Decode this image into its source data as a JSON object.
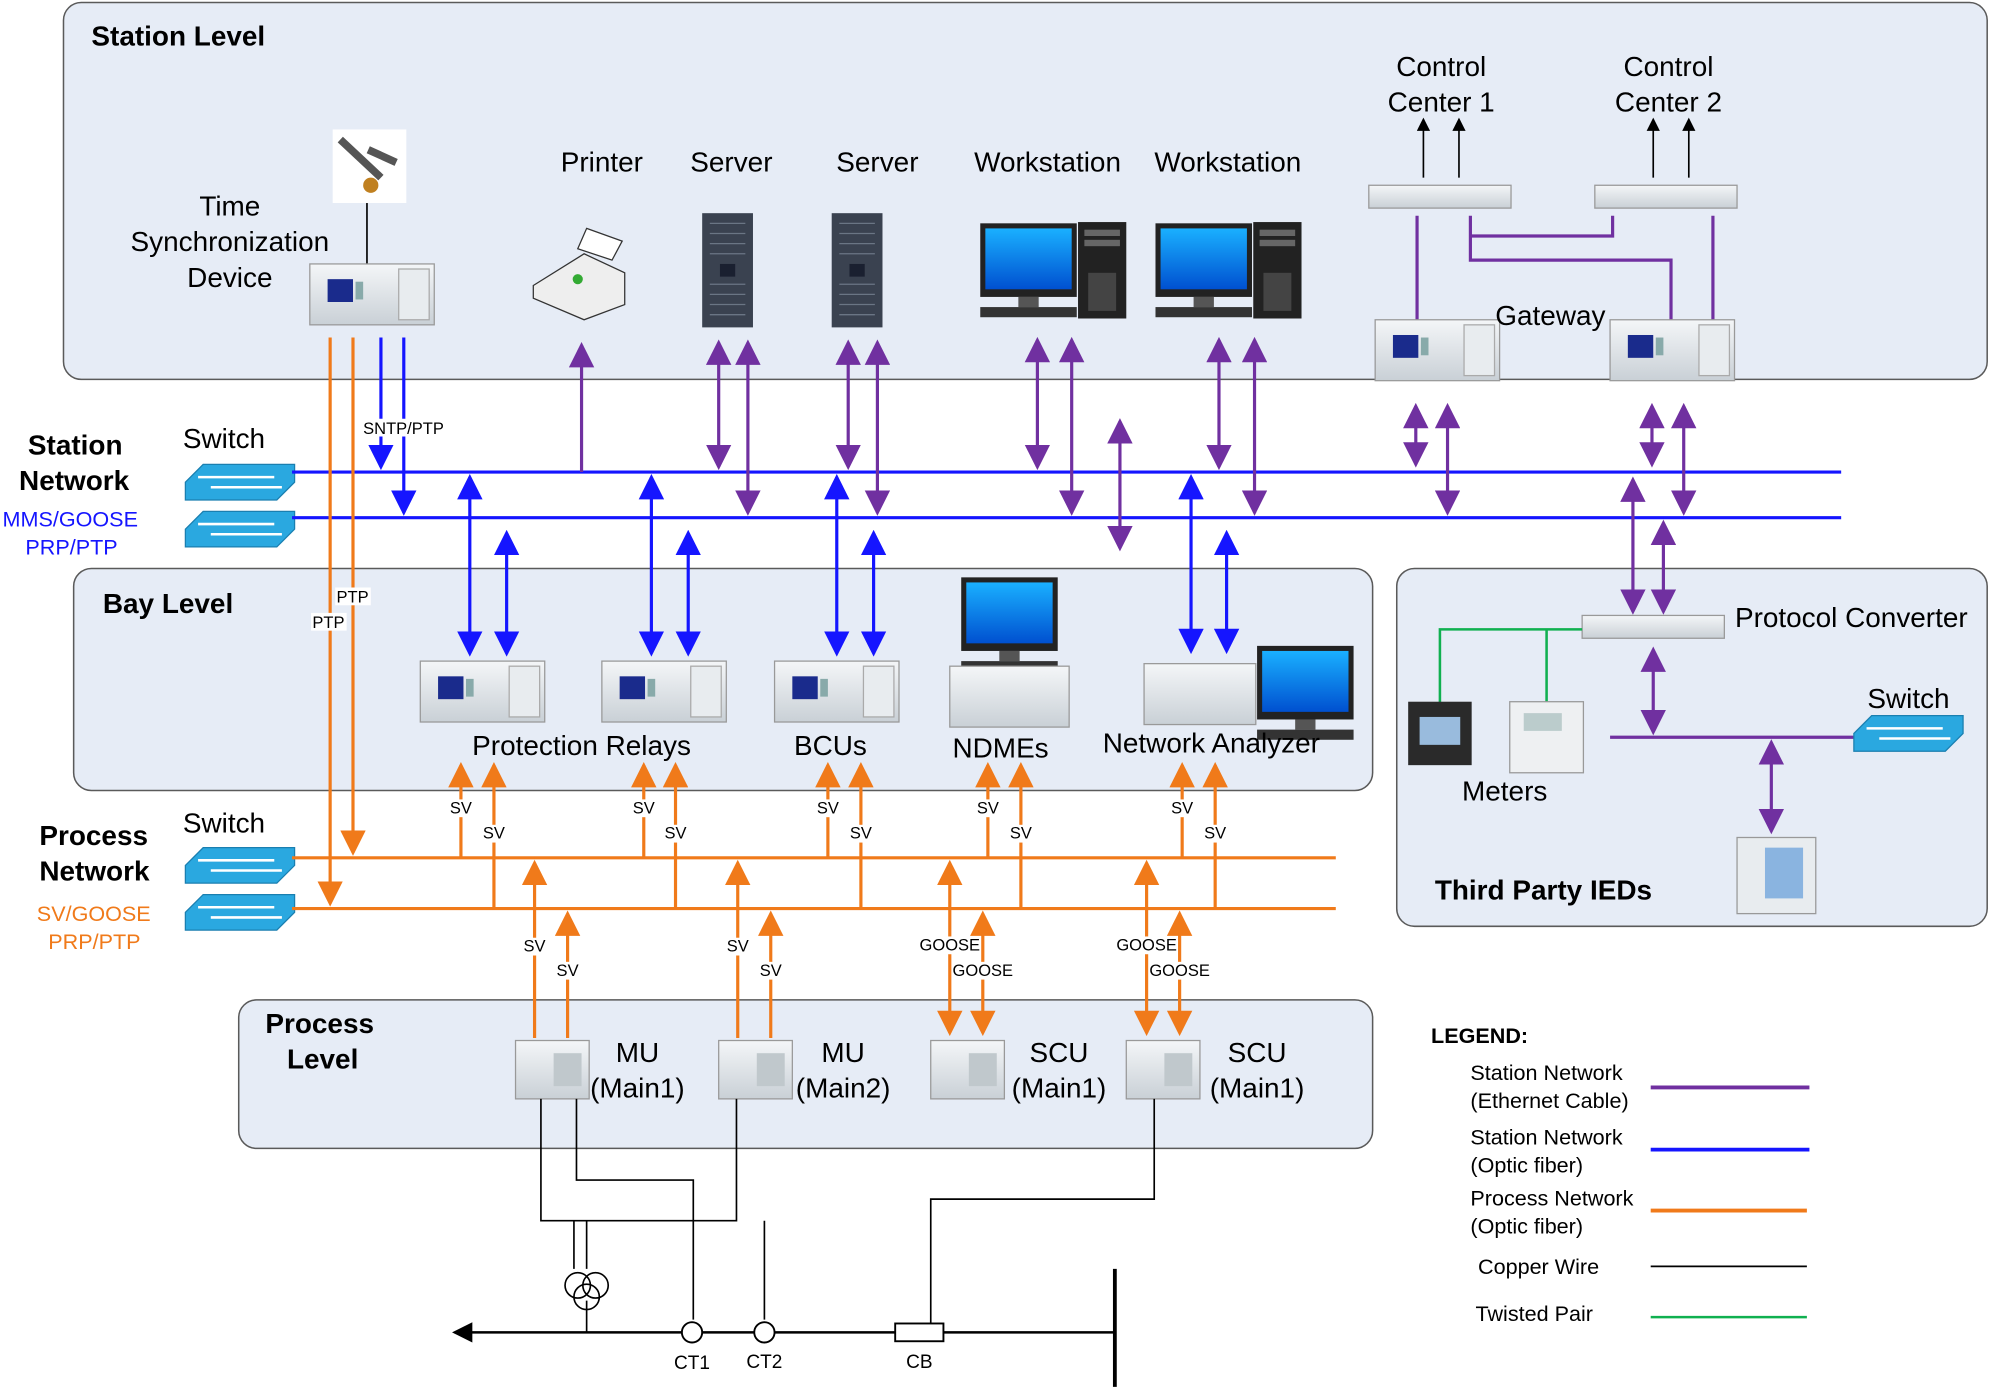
{
  "levels": {
    "station": "Station Level",
    "bay": "Bay Level",
    "process": [
      "Process",
      "Level"
    ],
    "third_party": "Third Party IEDs"
  },
  "networks": {
    "station": {
      "title": [
        "Station",
        "Network"
      ],
      "switch": "Switch",
      "protocols": [
        "MMS/GOOSE",
        "PRP/PTP"
      ]
    },
    "process": {
      "title": [
        "Process",
        "Network"
      ],
      "switch": "Switch",
      "protocols": [
        "SV/GOOSE",
        "PRP/PTP"
      ]
    }
  },
  "station_devices": {
    "time_sync": [
      "Time",
      "Synchronization",
      "Device"
    ],
    "printer": "Printer",
    "server1": "Server",
    "server2": "Server",
    "workstation1": "Workstation",
    "workstation2": "Workstation",
    "control_center1": [
      "Control",
      "Center 1"
    ],
    "control_center2": [
      "Control",
      "Center 2"
    ],
    "gateway": "Gateway"
  },
  "bay_devices": {
    "protection_relays": "Protection Relays",
    "bcus": "BCUs",
    "ndmes": "NDMEs",
    "network_analyzer": "Network Analyzer"
  },
  "third_party": {
    "protocol_converter": "Protocol Converter",
    "switch": "Switch",
    "meters": "Meters"
  },
  "process_devices": {
    "mu1": [
      "MU",
      "(Main1)"
    ],
    "mu2": [
      "MU",
      "(Main2)"
    ],
    "scu1": [
      "SCU",
      "(Main1)"
    ],
    "scu2": [
      "SCU",
      "(Main1)"
    ]
  },
  "link_labels": {
    "sntp": "SNTP/PTP",
    "ptp": "PTP",
    "sv": "SV",
    "goose": "GOOSE"
  },
  "primary": {
    "ct1": "CT1",
    "ct2": "CT2",
    "cb": "CB"
  },
  "legend": {
    "title": "LEGEND:",
    "items": [
      {
        "label": [
          "Station Network",
          "(Ethernet Cable)"
        ],
        "color": "#7030a0"
      },
      {
        "label": [
          "Station Network",
          "(Optic fiber)"
        ],
        "color": "#1515ff"
      },
      {
        "label": [
          "Process Network",
          "(Optic fiber)"
        ],
        "color": "#f07a1a"
      },
      {
        "label": [
          "Copper Wire"
        ],
        "color": "#000000"
      },
      {
        "label": [
          "Twisted Pair"
        ],
        "color": "#10b050"
      }
    ]
  }
}
